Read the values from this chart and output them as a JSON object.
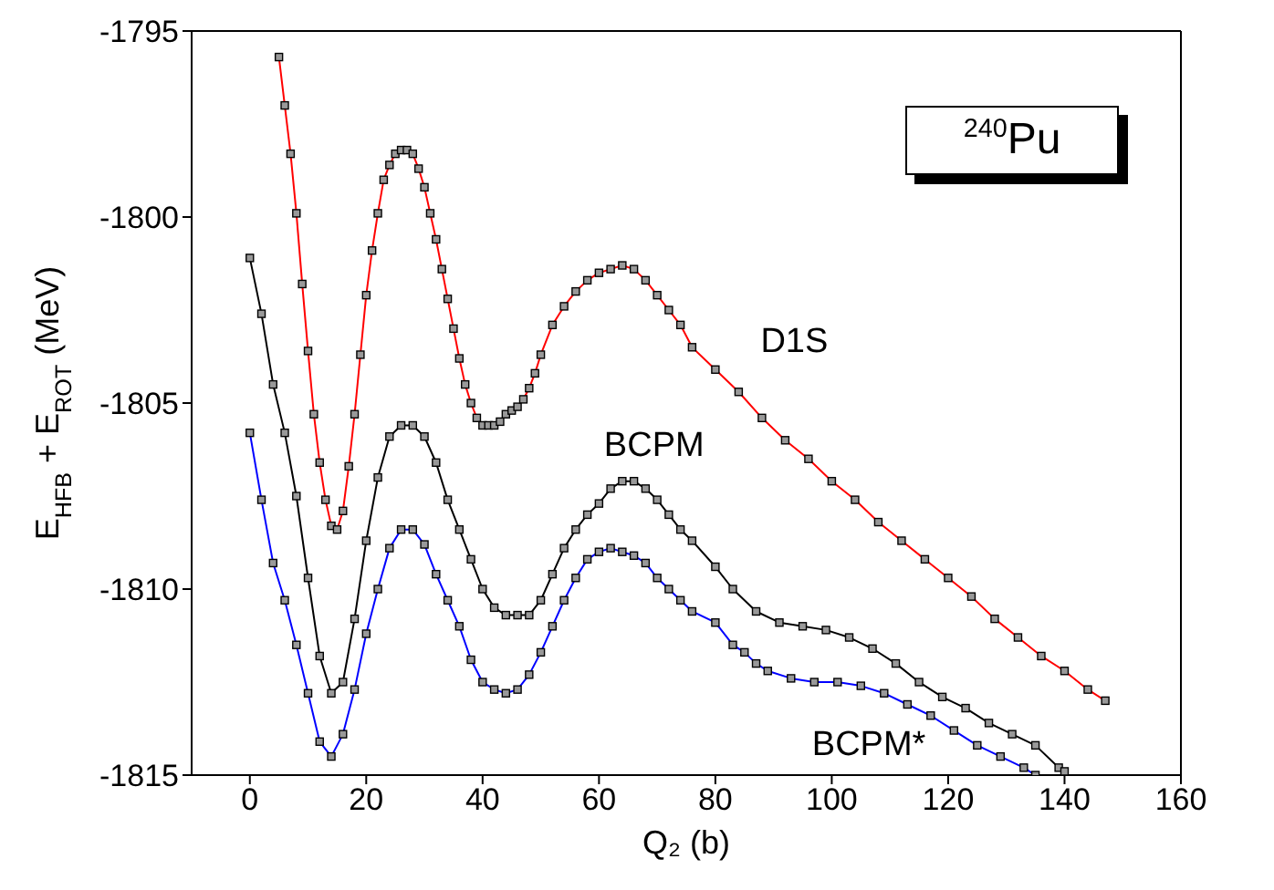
{
  "chart_data": {
    "type": "line",
    "xlabel": "Q₂ (b)",
    "ylabel": "E$_{HFB}$ + E$_{ROT}$ (MeV)",
    "annotations": [
      "$^{240}$Pu"
    ],
    "xlim": [
      -10,
      160
    ],
    "xticks": [
      0,
      20,
      40,
      60,
      80,
      100,
      120,
      140,
      160
    ],
    "ylim": [
      -1815,
      -1795
    ],
    "yticks": [
      -1815,
      -1810,
      -1805,
      -1800,
      -1795
    ],
    "grid": false,
    "legend": false,
    "marker": "square",
    "line_style": "solid",
    "series": [
      {
        "name": "D1S",
        "color": "#ff0000",
        "x": [
          5,
          6,
          7,
          8,
          9,
          10,
          11,
          12,
          13,
          14,
          15,
          16,
          17,
          18,
          19,
          20,
          21,
          22,
          23,
          24,
          25,
          26,
          27,
          28,
          29,
          30,
          31,
          32,
          33,
          34,
          35,
          36,
          37,
          38,
          39,
          40,
          41,
          42,
          43,
          44,
          45,
          46,
          47,
          48,
          49,
          50,
          52,
          54,
          56,
          58,
          60,
          62,
          64,
          66,
          68,
          70,
          72,
          74,
          76,
          80,
          84,
          88,
          92,
          96,
          100,
          104,
          108,
          112,
          116,
          120,
          124,
          128,
          132,
          136,
          140,
          144,
          147
        ],
        "values": [
          -1795.7,
          -1797.0,
          -1798.3,
          -1799.9,
          -1801.8,
          -1803.6,
          -1805.3,
          -1806.6,
          -1807.6,
          -1808.3,
          -1808.4,
          -1807.9,
          -1806.7,
          -1805.3,
          -1803.7,
          -1802.1,
          -1800.9,
          -1799.9,
          -1799.0,
          -1798.6,
          -1798.3,
          -1798.2,
          -1798.2,
          -1798.3,
          -1798.7,
          -1799.2,
          -1799.9,
          -1800.6,
          -1801.4,
          -1802.2,
          -1803.0,
          -1803.8,
          -1804.5,
          -1805.0,
          -1805.4,
          -1805.6,
          -1805.6,
          -1805.6,
          -1805.5,
          -1805.3,
          -1805.2,
          -1805.1,
          -1804.9,
          -1804.6,
          -1804.2,
          -1803.7,
          -1802.9,
          -1802.4,
          -1802.0,
          -1801.7,
          -1801.5,
          -1801.4,
          -1801.3,
          -1801.4,
          -1801.7,
          -1802.1,
          -1802.5,
          -1802.9,
          -1803.5,
          -1804.1,
          -1804.7,
          -1805.4,
          -1806.0,
          -1806.5,
          -1807.1,
          -1807.6,
          -1808.2,
          -1808.7,
          -1809.2,
          -1809.7,
          -1810.2,
          -1810.8,
          -1811.3,
          -1811.8,
          -1812.2,
          -1812.7,
          -1813.0
        ]
      },
      {
        "name": "BCPM",
        "color": "#000000",
        "x": [
          0,
          2,
          4,
          6,
          8,
          10,
          12,
          14,
          16,
          18,
          20,
          22,
          24,
          26,
          28,
          30,
          32,
          34,
          36,
          38,
          40,
          42,
          44,
          46,
          48,
          50,
          52,
          54,
          56,
          58,
          60,
          62,
          64,
          66,
          68,
          70,
          72,
          74,
          76,
          80,
          83,
          87,
          91,
          95,
          99,
          103,
          107,
          111,
          115,
          119,
          123,
          127,
          131,
          135,
          139,
          140
        ],
        "values": [
          -1801.1,
          -1802.6,
          -1804.5,
          -1805.8,
          -1807.5,
          -1809.7,
          -1811.8,
          -1812.8,
          -1812.5,
          -1810.8,
          -1808.7,
          -1807.0,
          -1805.9,
          -1805.6,
          -1805.6,
          -1805.9,
          -1806.6,
          -1807.6,
          -1808.4,
          -1809.2,
          -1810.0,
          -1810.5,
          -1810.7,
          -1810.7,
          -1810.7,
          -1810.3,
          -1809.6,
          -1808.9,
          -1808.4,
          -1808.0,
          -1807.7,
          -1807.3,
          -1807.1,
          -1807.1,
          -1807.3,
          -1807.6,
          -1808.0,
          -1808.4,
          -1808.7,
          -1809.4,
          -1810.0,
          -1810.6,
          -1810.9,
          -1811.0,
          -1811.1,
          -1811.3,
          -1811.6,
          -1812.0,
          -1812.5,
          -1812.9,
          -1813.2,
          -1813.6,
          -1813.9,
          -1814.2,
          -1814.8,
          -1814.9
        ]
      },
      {
        "name": "BCPM*",
        "color": "#0000ff",
        "x": [
          0,
          2,
          4,
          6,
          8,
          10,
          12,
          14,
          16,
          18,
          20,
          22,
          24,
          26,
          28,
          30,
          32,
          34,
          36,
          38,
          40,
          42,
          44,
          46,
          48,
          50,
          52,
          54,
          56,
          58,
          60,
          62,
          64,
          66,
          68,
          70,
          72,
          74,
          76,
          80,
          83,
          85,
          87,
          89,
          93,
          97,
          101,
          105,
          109,
          113,
          117,
          121,
          125,
          129,
          133,
          135
        ],
        "values": [
          -1805.8,
          -1807.6,
          -1809.3,
          -1810.3,
          -1811.5,
          -1812.8,
          -1814.1,
          -1814.5,
          -1813.9,
          -1812.7,
          -1811.2,
          -1810.0,
          -1808.9,
          -1808.4,
          -1808.4,
          -1808.8,
          -1809.6,
          -1810.3,
          -1811.0,
          -1811.9,
          -1812.5,
          -1812.7,
          -1812.8,
          -1812.7,
          -1812.3,
          -1811.7,
          -1811.0,
          -1810.3,
          -1809.7,
          -1809.2,
          -1809.0,
          -1808.9,
          -1809.0,
          -1809.1,
          -1809.3,
          -1809.7,
          -1810.0,
          -1810.3,
          -1810.6,
          -1810.9,
          -1811.5,
          -1811.7,
          -1812.0,
          -1812.2,
          -1812.4,
          -1812.5,
          -1812.5,
          -1812.6,
          -1812.8,
          -1813.1,
          -1813.4,
          -1813.8,
          -1814.2,
          -1814.5,
          -1814.8,
          -1815.0
        ]
      }
    ]
  }
}
